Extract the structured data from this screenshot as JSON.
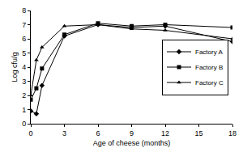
{
  "chart_data": {
    "type": "line",
    "x_label": "Age of cheese (months)",
    "y_label": "Log cfu/g",
    "x": [
      0,
      0.5,
      1,
      3,
      6,
      9,
      12,
      18
    ],
    "series": [
      {
        "name": "Factory A",
        "color": "#000000",
        "marker": "diamond",
        "values": [
          0.9,
          0.7,
          2.7,
          6.2,
          7.0,
          6.8,
          6.9,
          5.8
        ]
      },
      {
        "name": "Factory B",
        "color": "#000000",
        "marker": "square",
        "values": [
          1.7,
          2.5,
          3.9,
          6.3,
          7.1,
          6.9,
          7.0,
          6.8
        ]
      },
      {
        "name": "Factory C",
        "color": "#000000",
        "marker": "triangle",
        "values": [
          2.0,
          4.5,
          5.4,
          6.9,
          7.0,
          6.7,
          6.6,
          6.0
        ]
      }
    ],
    "xlim": [
      0,
      18
    ],
    "xticks": [
      0,
      3,
      6,
      9,
      12,
      15,
      18
    ],
    "ylim": [
      0,
      8
    ],
    "yticks": [
      0,
      1,
      2,
      3,
      4,
      5,
      6,
      7,
      8
    ],
    "grid": false,
    "legend": "right"
  }
}
